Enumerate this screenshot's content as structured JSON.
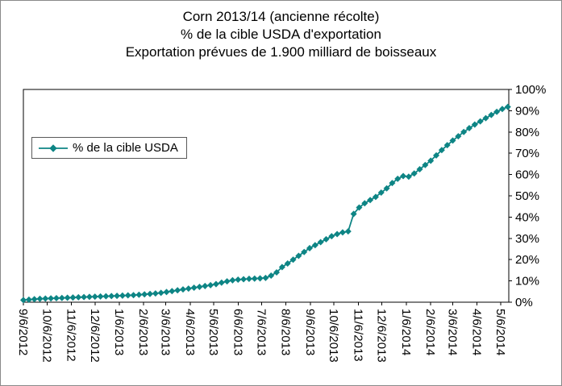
{
  "title": {
    "line1": "Corn 2013/14 (ancienne récolte)",
    "line2": "% de la cible USDA d'exportation",
    "line3": "Exportation prévues de 1.900 milliard de boisseaux"
  },
  "legend": {
    "label": "% de la cible USDA"
  },
  "colors": {
    "series_teal": "#0e8585",
    "axis": "#000000",
    "background": "#ffffff",
    "frame_border": "#8a8a8a"
  },
  "chart_data": {
    "type": "line",
    "title": "Corn 2013/14 (ancienne récolte) — % de la cible USDA d'exportation — Exportation prévues de 1.900 milliard de boisseaux",
    "xlabel": "",
    "ylabel": "",
    "ylim": [
      0,
      100
    ],
    "y_tick_step": 10,
    "y_tick_labels": [
      "0%",
      "10%",
      "20%",
      "30%",
      "40%",
      "50%",
      "60%",
      "70%",
      "80%",
      "90%",
      "100%"
    ],
    "y_axis_side": "right",
    "grid": false,
    "legend_position": "upper-left-inside",
    "x_tick_labels": [
      "9/6/2012",
      "10/6/2012",
      "11/6/2012",
      "12/6/2012",
      "1/6/2013",
      "2/6/2013",
      "3/6/2013",
      "4/6/2013",
      "5/6/2013",
      "6/6/2013",
      "7/6/2013",
      "8/6/2013",
      "9/6/2013",
      "10/6/2013",
      "11/6/2013",
      "12/6/2013",
      "1/6/2014",
      "2/6/2014",
      "3/6/2014",
      "4/6/2014",
      "5/6/2014"
    ],
    "x_start_date": "9/6/2012",
    "x_interval_days": 7,
    "series": [
      {
        "name": "% de la cible USDA",
        "marker": "diamond",
        "color": "#0e8585",
        "values": [
          1.0,
          1.2,
          1.4,
          1.6,
          1.7,
          1.8,
          1.9,
          2.0,
          2.1,
          2.2,
          2.3,
          2.4,
          2.5,
          2.6,
          2.7,
          2.8,
          2.9,
          3.0,
          3.1,
          3.2,
          3.3,
          3.5,
          3.7,
          3.9,
          4.1,
          4.4,
          4.8,
          5.2,
          5.6,
          6.0,
          6.4,
          6.8,
          7.2,
          7.6,
          8.0,
          8.5,
          9.2,
          9.8,
          10.3,
          10.6,
          10.8,
          11.0,
          11.1,
          11.2,
          11.4,
          12.5,
          14.0,
          16.5,
          18.2,
          20.0,
          21.8,
          23.6,
          25.4,
          26.8,
          28.2,
          29.6,
          31.0,
          32.0,
          32.8,
          33.3,
          41.5,
          44.5,
          46.5,
          48.0,
          49.5,
          51.5,
          53.5,
          56.0,
          58.0,
          59.3,
          59.0,
          60.5,
          62.5,
          64.5,
          66.5,
          69.0,
          71.5,
          73.8,
          76.0,
          78.0,
          80.0,
          81.8,
          83.5,
          85.0,
          86.5,
          88.0,
          89.5,
          90.8,
          91.8
        ]
      }
    ]
  }
}
